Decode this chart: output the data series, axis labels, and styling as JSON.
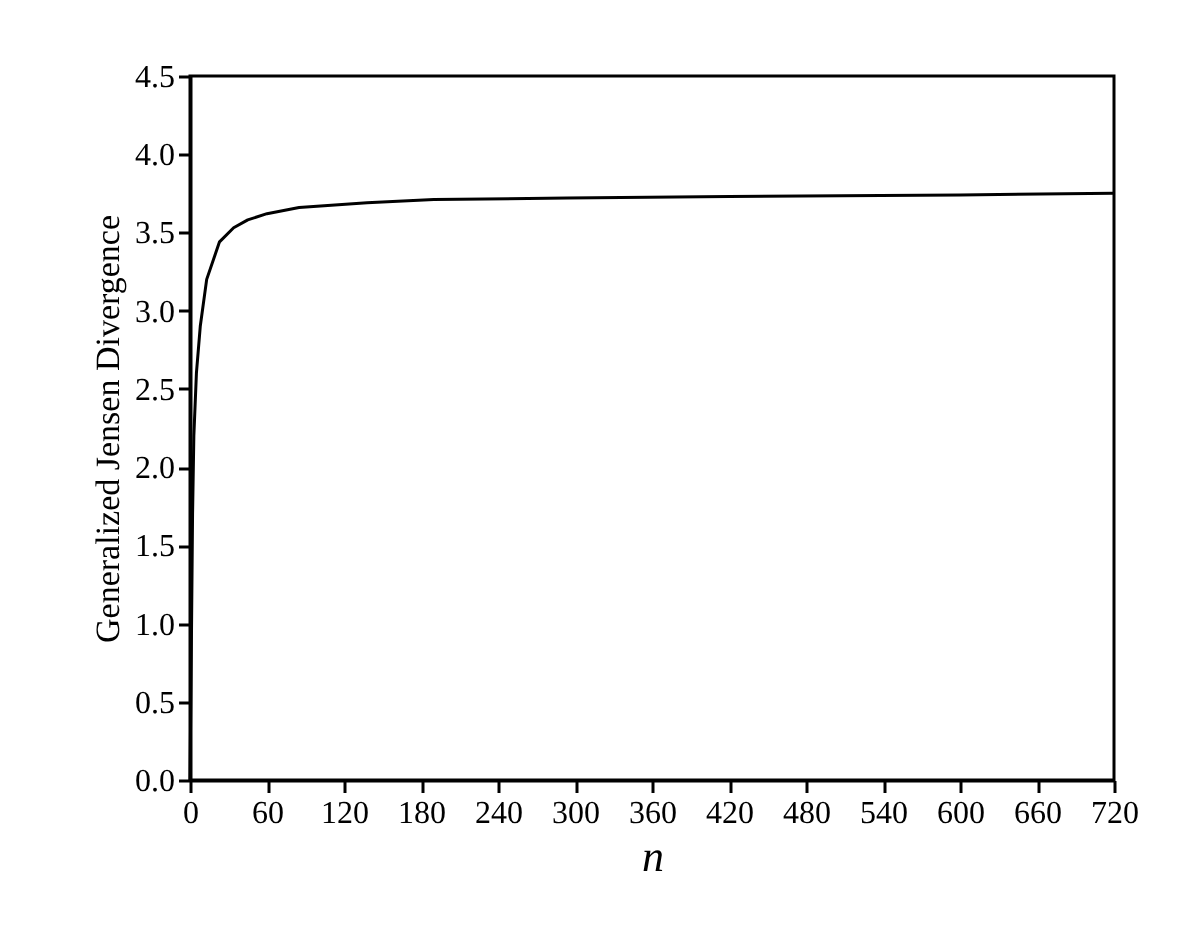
{
  "chart_data": {
    "type": "line",
    "xlabel": "n",
    "ylabel": "Generalized Jensen Divergence",
    "x": [
      0,
      1,
      2,
      3,
      5,
      8,
      13,
      23,
      34,
      45,
      60,
      85,
      138,
      190,
      294,
      420,
      600,
      720
    ],
    "series": [
      {
        "color": "#000000",
        "values": [
          0,
          0.8,
          1.7,
          2.2,
          2.6,
          2.9,
          3.2,
          3.44,
          3.53,
          3.58,
          3.62,
          3.66,
          3.69,
          3.71,
          3.72,
          3.73,
          3.74,
          3.75
        ]
      }
    ],
    "xlim": [
      0,
      720
    ],
    "xticks": [
      0,
      60,
      120,
      180,
      240,
      300,
      360,
      420,
      480,
      540,
      600,
      660,
      720
    ],
    "ylim": [
      0,
      4.5
    ],
    "yticks": [
      {
        "value": 0,
        "label": "0.0"
      },
      0.5,
      {
        "value": 1,
        "label": "1.0"
      },
      1.5,
      {
        "value": 2,
        "label": "2.0"
      },
      2.5,
      {
        "value": 3,
        "label": "3.0"
      },
      3.5,
      {
        "value": 4,
        "label": "4.0"
      },
      4.5
    ],
    "grid": false,
    "marker": "none",
    "line_style": "solid"
  }
}
